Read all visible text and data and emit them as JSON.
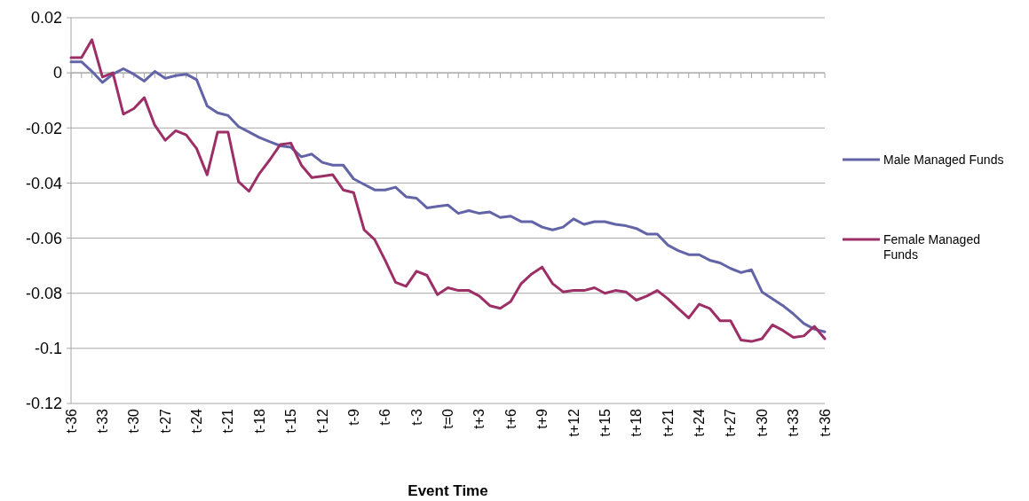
{
  "chart_data": {
    "type": "line",
    "xlabel": "Event Time",
    "categories": [
      "t-36",
      null,
      null,
      "t-33",
      null,
      null,
      "t-30",
      null,
      null,
      "t-27",
      null,
      null,
      "t-24",
      null,
      null,
      "t-21",
      null,
      null,
      "t-18",
      null,
      null,
      "t-15",
      null,
      null,
      "t-12",
      null,
      null,
      "t-9",
      null,
      null,
      "t-6",
      null,
      null,
      "t-3",
      null,
      null,
      "t=0",
      null,
      null,
      "t+3",
      null,
      null,
      "t+6",
      null,
      null,
      "t+9",
      null,
      null,
      "t+12",
      null,
      null,
      "t+15",
      null,
      null,
      "t+18",
      null,
      null,
      "t+21",
      null,
      null,
      "t+24",
      null,
      null,
      "t+27",
      null,
      null,
      "t+30",
      null,
      null,
      "t+33",
      null,
      null,
      "t+36"
    ],
    "series": [
      {
        "name": "Male Managed Funds",
        "color": "#6264a7",
        "values": [
          0.004,
          0.004,
          0.0005,
          -0.0035,
          -0.0005,
          0.0015,
          -0.0005,
          -0.003,
          0.0005,
          -0.002,
          -0.001,
          -0.0005,
          -0.0025,
          -0.012,
          -0.0145,
          -0.0155,
          -0.0195,
          -0.0215,
          -0.0235,
          -0.025,
          -0.0265,
          -0.027,
          -0.0305,
          -0.0295,
          -0.0325,
          -0.0335,
          -0.0335,
          -0.0385,
          -0.0405,
          -0.0425,
          -0.0425,
          -0.0415,
          -0.045,
          -0.0455,
          -0.049,
          -0.0485,
          -0.048,
          -0.051,
          -0.05,
          -0.051,
          -0.0505,
          -0.0525,
          -0.052,
          -0.054,
          -0.054,
          -0.056,
          -0.057,
          -0.056,
          -0.053,
          -0.055,
          -0.054,
          -0.054,
          -0.055,
          -0.0555,
          -0.0565,
          -0.0585,
          -0.0585,
          -0.0625,
          -0.0645,
          -0.066,
          -0.066,
          -0.068,
          -0.069,
          -0.071,
          -0.0725,
          -0.0715,
          -0.0795,
          -0.082,
          -0.0845,
          -0.0875,
          -0.091,
          -0.093,
          -0.094
        ]
      },
      {
        "name": "Female Managed Funds",
        "color": "#9b2f66",
        "values": [
          0.0055,
          0.0055,
          0.012,
          -0.0015,
          0,
          -0.015,
          -0.013,
          -0.009,
          -0.019,
          -0.0245,
          -0.021,
          -0.0225,
          -0.0275,
          -0.037,
          -0.0215,
          -0.0215,
          -0.0395,
          -0.043,
          -0.0365,
          -0.0315,
          -0.026,
          -0.0255,
          -0.0335,
          -0.038,
          -0.0375,
          -0.037,
          -0.0425,
          -0.0435,
          -0.057,
          -0.0605,
          -0.068,
          -0.076,
          -0.0775,
          -0.072,
          -0.0735,
          -0.0805,
          -0.078,
          -0.079,
          -0.079,
          -0.081,
          -0.0845,
          -0.0855,
          -0.083,
          -0.0765,
          -0.073,
          -0.0705,
          -0.0765,
          -0.0795,
          -0.079,
          -0.079,
          -0.078,
          -0.08,
          -0.079,
          -0.0795,
          -0.0825,
          -0.081,
          -0.079,
          -0.082,
          -0.0855,
          -0.089,
          -0.084,
          -0.0855,
          -0.09,
          -0.09,
          -0.097,
          -0.0975,
          -0.0965,
          -0.0915,
          -0.0935,
          -0.096,
          -0.0955,
          -0.092,
          -0.0965
        ]
      }
    ],
    "ylim": [
      -0.12,
      0.02
    ],
    "yticks": [
      -0.12,
      -0.1,
      -0.08,
      -0.06,
      -0.04,
      -0.02,
      0,
      0.02
    ],
    "grid": "y",
    "legend": "right",
    "marker": "none",
    "line_style": "solid"
  }
}
